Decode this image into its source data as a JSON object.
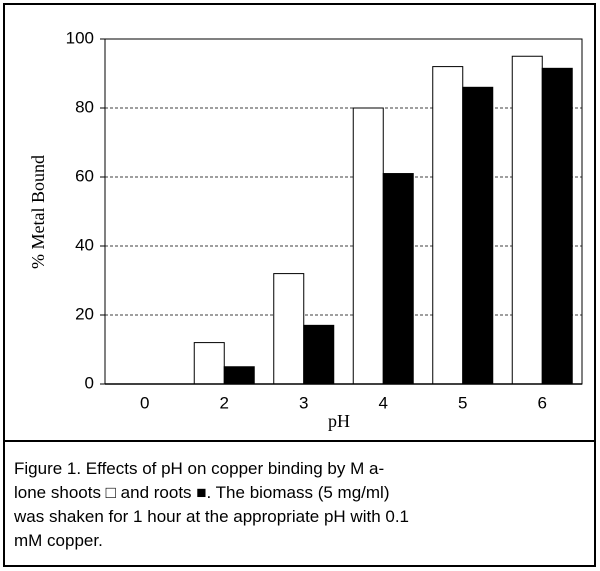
{
  "chart_data": {
    "type": "bar",
    "x_label": "pH",
    "y_label": "% Metal Bound",
    "categories": [
      "0",
      "2",
      "3",
      "4",
      "5",
      "6"
    ],
    "series": [
      {
        "color": "#ffffff",
        "values": [
          0,
          12,
          32,
          80,
          92,
          95
        ]
      },
      {
        "color": "#000000",
        "values": [
          0,
          5,
          17,
          61,
          86,
          91.5
        ]
      }
    ],
    "ylim": [
      0,
      100
    ],
    "yticks": [
      0,
      20,
      40,
      60,
      80,
      100
    ],
    "grid": true,
    "caption_lines": [
      "Figure 1. Effects of pH on copper binding by M a-",
      "lone shoots □ and roots ■. The biomass (5 mg/ml)",
      "was shaken for 1 hour at the appropriate pH with 0.1",
      "mM copper."
    ]
  }
}
